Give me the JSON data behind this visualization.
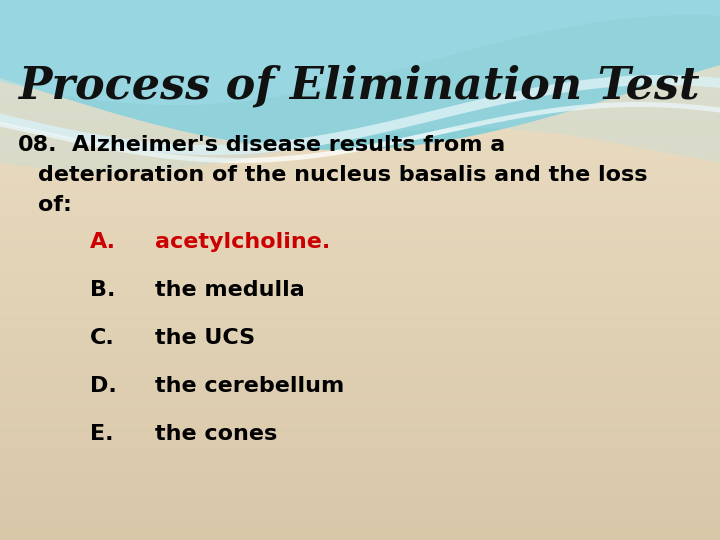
{
  "title": "Process of Elimination Test",
  "title_color": "#111111",
  "title_fontsize": 32,
  "bg_color_bottom": "#ddd0b0",
  "bg_color_center": "#ede3c8",
  "question_number": "08.",
  "q_line1": "Alzheimer's disease results from a",
  "q_line2": "deterioration of the nucleus basalis and the loss",
  "q_line3": "of:",
  "question_color": "#000000",
  "question_fontsize": 16,
  "options": [
    {
      "letter": "A.",
      "text": "acetylcholine.",
      "letter_color": "#cc0000",
      "text_color": "#cc0000"
    },
    {
      "letter": "B.",
      "text": "the medulla",
      "letter_color": "#000000",
      "text_color": "#000000"
    },
    {
      "letter": "C.",
      "text": "the UCS",
      "letter_color": "#000000",
      "text_color": "#000000"
    },
    {
      "letter": "D.",
      "text": "the cerebellum",
      "letter_color": "#000000",
      "text_color": "#000000"
    },
    {
      "letter": "E.",
      "text": "the cones",
      "letter_color": "#000000",
      "text_color": "#000000"
    }
  ],
  "option_fontsize": 16,
  "wave_teal_dark": "#5bbdc8",
  "wave_teal_light": "#8dd5e0",
  "wave_white": "#e8f8fa"
}
